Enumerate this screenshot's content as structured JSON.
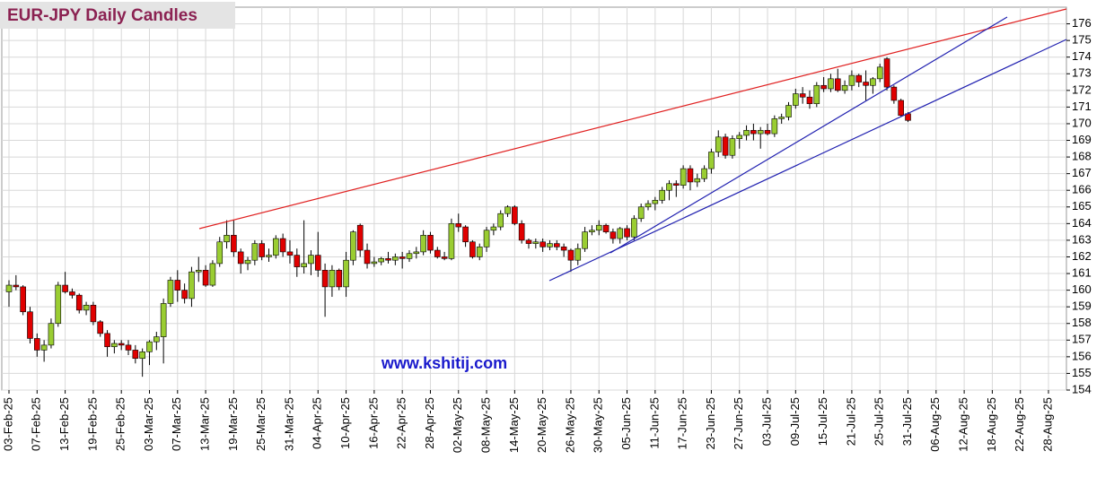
{
  "chart_data": {
    "type": "candlestick",
    "title": "EUR-JPY Daily  Candles",
    "annotation": "www.kshitij.com",
    "categories": [
      "03-Feb-25",
      null,
      null,
      null,
      "07-Feb-25",
      null,
      null,
      null,
      "13-Feb-25",
      null,
      null,
      null,
      "19-Feb-25",
      null,
      null,
      null,
      "25-Feb-25",
      null,
      null,
      null,
      "03-Mar-25",
      null,
      null,
      null,
      "07-Mar-25",
      null,
      null,
      null,
      "13-Mar-25",
      null,
      null,
      null,
      "19-Mar-25",
      null,
      null,
      null,
      "25-Mar-25",
      null,
      null,
      null,
      "31-Mar-25",
      null,
      null,
      null,
      "04-Apr-25",
      null,
      null,
      null,
      "10-Apr-25",
      null,
      null,
      null,
      "16-Apr-25",
      null,
      null,
      null,
      "22-Apr-25",
      null,
      null,
      null,
      "28-Apr-25",
      null,
      null,
      null,
      "02-May-25",
      null,
      null,
      null,
      "08-May-25",
      null,
      null,
      null,
      "14-May-25",
      null,
      null,
      null,
      "20-May-25",
      null,
      null,
      null,
      "26-May-25",
      null,
      null,
      null,
      "30-May-25",
      null,
      null,
      null,
      "05-Jun-25",
      null,
      null,
      null,
      "11-Jun-25",
      null,
      null,
      null,
      "17-Jun-25",
      null,
      null,
      null,
      "23-Jun-25",
      null,
      null,
      null,
      "27-Jun-25",
      null,
      null,
      null,
      "03-Jul-25",
      null,
      null,
      null,
      "09-Jul-25",
      null,
      null,
      null,
      "15-Jul-25",
      null,
      null,
      null,
      "21-Jul-25",
      null,
      null,
      null,
      "25-Jul-25",
      null,
      null,
      null,
      "31-Jul-25",
      null,
      null,
      null,
      "06-Aug-25",
      null,
      null,
      null,
      "12-Aug-25",
      null,
      null,
      null,
      "18-Aug-25",
      null,
      null,
      null,
      "22-Aug-25",
      null,
      null,
      null,
      "28-Aug-25"
    ],
    "open": [
      159.9,
      160.3,
      160.2,
      158.7,
      157.1,
      156.4,
      156.7,
      158.0,
      160.3,
      159.9,
      159.7,
      158.8,
      159.1,
      158.1,
      157.4,
      156.6,
      156.8,
      156.7,
      156.4,
      155.9,
      156.3,
      156.9,
      157.2,
      159.2,
      160.6,
      160.0,
      159.5,
      161.1,
      161.2,
      160.3,
      161.6,
      162.9,
      163.3,
      162.3,
      161.6,
      161.8,
      162.8,
      162.0,
      162.1,
      163.1,
      162.3,
      162.1,
      161.4,
      161.6,
      162.1,
      161.2,
      160.2,
      161.2,
      160.2,
      161.8,
      163.9,
      162.4,
      161.6,
      161.7,
      161.9,
      161.8,
      162.0,
      161.9,
      162.2,
      162.3,
      163.3,
      162.4,
      162.0,
      161.9,
      164.0,
      163.8,
      162.9,
      162.0,
      162.6,
      163.6,
      163.8,
      164.6,
      165.0,
      164.0,
      163.0,
      162.8,
      162.9,
      162.6,
      162.8,
      162.6,
      162.4,
      161.8,
      162.5,
      163.5,
      163.6,
      163.9,
      163.5,
      163.1,
      163.7,
      163.2,
      164.3,
      165.0,
      165.2,
      165.4,
      166.0,
      166.4,
      166.3,
      167.3,
      166.5,
      166.7,
      167.3,
      168.3,
      169.2,
      168.1,
      169.1,
      169.3,
      169.6,
      169.4,
      169.6,
      169.4,
      170.3,
      170.4,
      171.1,
      171.8,
      171.6,
      171.2,
      172.3,
      172.1,
      172.7,
      172.0,
      172.3,
      172.9,
      172.5,
      172.3,
      172.7,
      173.9,
      172.2,
      171.4,
      170.6,
      null,
      null,
      null,
      null,
      null,
      null,
      null,
      null,
      null,
      null,
      null,
      null,
      null,
      null,
      null,
      null,
      null,
      null,
      null,
      null
    ],
    "high": [
      160.6,
      160.9,
      160.3,
      159.0,
      157.4,
      157.0,
      158.3,
      160.5,
      161.1,
      160.1,
      159.8,
      159.3,
      159.3,
      158.2,
      157.6,
      157.0,
      157.0,
      157.0,
      156.7,
      156.5,
      157.0,
      157.5,
      159.5,
      160.8,
      161.2,
      160.4,
      161.4,
      162.0,
      161.5,
      161.8,
      163.2,
      164.2,
      164.2,
      162.5,
      162.0,
      163.0,
      163.0,
      162.5,
      163.3,
      163.4,
      163.0,
      162.5,
      164.2,
      162.4,
      163.5,
      161.6,
      161.5,
      161.3,
      162.3,
      163.6,
      164.0,
      162.8,
      162.0,
      162.0,
      162.3,
      162.2,
      162.3,
      162.4,
      162.6,
      163.6,
      163.5,
      162.6,
      162.3,
      164.3,
      164.6,
      163.9,
      163.0,
      162.8,
      163.8,
      164.0,
      164.8,
      165.1,
      165.1,
      164.2,
      163.1,
      163.1,
      163.1,
      163.0,
      163.0,
      162.8,
      162.5,
      162.8,
      163.8,
      163.9,
      164.2,
      164.0,
      163.7,
      163.8,
      163.9,
      164.5,
      165.2,
      165.4,
      165.6,
      166.2,
      166.6,
      166.6,
      167.5,
      167.5,
      167.0,
      167.5,
      168.5,
      169.6,
      169.4,
      169.3,
      169.5,
      169.9,
      170.0,
      169.8,
      170.0,
      170.5,
      170.6,
      171.3,
      172.1,
      172.2,
      172.0,
      172.5,
      172.8,
      173.0,
      173.3,
      172.6,
      173.2,
      173.0,
      173.2,
      172.8,
      173.6,
      174.0,
      172.3,
      171.5,
      170.7,
      null,
      null,
      null,
      null,
      null,
      null,
      null,
      null,
      null,
      null,
      null,
      null,
      null,
      null,
      null,
      null,
      null,
      null,
      null,
      null
    ],
    "low": [
      159.0,
      160.0,
      158.5,
      156.8,
      156.0,
      155.7,
      156.5,
      157.8,
      159.8,
      159.5,
      158.6,
      158.5,
      157.9,
      157.2,
      156.0,
      156.2,
      156.4,
      156.1,
      155.6,
      154.8,
      155.5,
      156.4,
      155.6,
      159.0,
      159.3,
      159.2,
      159.0,
      160.5,
      160.2,
      160.2,
      161.4,
      162.5,
      162.0,
      161.0,
      161.2,
      161.5,
      161.8,
      161.7,
      161.9,
      162.0,
      161.6,
      160.8,
      161.0,
      160.9,
      160.8,
      158.4,
      159.6,
      160.0,
      159.6,
      161.5,
      162.0,
      161.3,
      161.4,
      161.5,
      161.6,
      161.5,
      161.3,
      161.7,
      161.9,
      162.1,
      162.2,
      161.9,
      161.8,
      161.8,
      163.5,
      162.6,
      161.9,
      161.8,
      162.3,
      163.3,
      163.6,
      164.4,
      163.9,
      162.8,
      162.5,
      162.5,
      162.3,
      162.4,
      162.4,
      162.0,
      161.1,
      161.5,
      162.3,
      163.3,
      163.3,
      163.4,
      162.8,
      162.8,
      163.0,
      163.0,
      164.1,
      164.8,
      164.8,
      165.2,
      165.4,
      165.6,
      166.1,
      166.0,
      166.2,
      166.5,
      167.0,
      168.0,
      167.9,
      167.9,
      168.5,
      169.0,
      169.0,
      168.5,
      169.3,
      169.2,
      170.0,
      170.2,
      170.9,
      171.2,
      170.9,
      171.0,
      171.9,
      171.9,
      171.9,
      171.8,
      172.0,
      172.2,
      171.4,
      171.8,
      172.5,
      172.0,
      171.2,
      170.4,
      170.1,
      null,
      null,
      null,
      null,
      null,
      null,
      null,
      null,
      null,
      null,
      null,
      null,
      null,
      null,
      null,
      null,
      null,
      null,
      null,
      null
    ],
    "close": [
      160.3,
      160.2,
      158.7,
      157.1,
      156.4,
      156.7,
      158.0,
      160.3,
      159.9,
      159.7,
      158.8,
      159.1,
      158.1,
      157.4,
      156.6,
      156.8,
      156.7,
      156.4,
      155.9,
      156.3,
      156.9,
      157.2,
      159.2,
      160.6,
      160.0,
      159.5,
      161.1,
      161.2,
      160.3,
      161.6,
      162.9,
      163.3,
      162.3,
      161.6,
      161.8,
      162.8,
      162.0,
      162.1,
      163.1,
      162.3,
      162.1,
      161.4,
      161.6,
      162.1,
      161.2,
      160.2,
      161.2,
      160.2,
      161.8,
      163.5,
      162.4,
      161.6,
      161.7,
      161.9,
      161.8,
      162.0,
      161.9,
      162.2,
      162.3,
      163.3,
      162.4,
      162.0,
      161.9,
      164.0,
      163.8,
      162.9,
      162.0,
      162.6,
      163.6,
      163.8,
      164.6,
      165.0,
      164.0,
      163.0,
      162.8,
      162.9,
      162.6,
      162.8,
      162.6,
      162.4,
      161.8,
      162.5,
      163.5,
      163.6,
      163.9,
      163.5,
      163.1,
      163.7,
      163.2,
      164.3,
      165.0,
      165.2,
      165.4,
      166.0,
      166.4,
      166.3,
      167.3,
      166.5,
      166.7,
      167.3,
      168.3,
      169.2,
      168.1,
      169.1,
      169.3,
      169.6,
      169.4,
      169.6,
      169.4,
      170.3,
      170.4,
      171.1,
      171.8,
      171.6,
      171.2,
      172.3,
      172.1,
      172.7,
      172.0,
      172.3,
      172.9,
      172.5,
      172.3,
      172.7,
      173.4,
      172.2,
      171.4,
      170.5,
      170.2,
      null,
      null,
      null,
      null,
      null,
      null,
      null,
      null,
      null,
      null,
      null,
      null,
      null,
      null,
      null,
      null,
      null,
      null,
      null,
      null
    ],
    "up_color": "#9acd32",
    "down_color": "#e00000",
    "ylim": [
      154,
      177
    ],
    "yticks": [
      154,
      155,
      156,
      157,
      158,
      159,
      160,
      161,
      162,
      163,
      164,
      165,
      166,
      167,
      168,
      169,
      170,
      171,
      172,
      173,
      174,
      175,
      176
    ],
    "grid": true
  }
}
